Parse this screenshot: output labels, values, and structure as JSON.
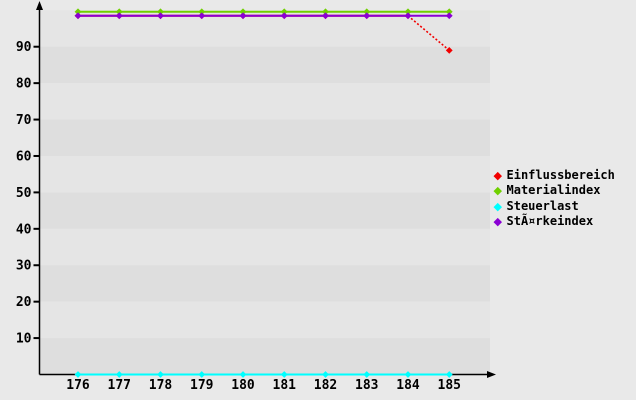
{
  "page": {
    "background_color": "#e9e9e9",
    "plot_band_light": "#e5e5e5",
    "plot_band_dark": "#dedede",
    "axis_color": "#000000",
    "text_color": "#000000"
  },
  "chart_data": {
    "type": "line",
    "title": "",
    "xlabel": "",
    "ylabel": "",
    "x": [
      176,
      177,
      178,
      179,
      180,
      181,
      182,
      183,
      184,
      185
    ],
    "xticklabels": [
      "176",
      "177",
      "178",
      "179",
      "180",
      "181",
      "182",
      "183",
      "184",
      "185"
    ],
    "yticks": [
      10,
      20,
      30,
      40,
      50,
      60,
      70,
      80,
      90
    ],
    "yticklabels": [
      "10",
      "20",
      "30",
      "40",
      "50",
      "60",
      "70",
      "80",
      "90"
    ],
    "ylim": [
      0,
      100
    ],
    "grid": "horizontal-bands",
    "legend_position": "right",
    "marker": "diamond",
    "series": [
      {
        "name": "Einflussbereich",
        "color": "#f20000",
        "values": [
          98.5,
          98.5,
          98.5,
          98.5,
          98.5,
          98.5,
          98.5,
          98.5,
          98.5,
          89
        ],
        "last_segment_dotted": true
      },
      {
        "name": "Materialindex",
        "color": "#70d000",
        "values": [
          99.6,
          99.6,
          99.6,
          99.6,
          99.6,
          99.6,
          99.6,
          99.6,
          99.6,
          99.6
        ],
        "last_segment_dotted": false
      },
      {
        "name": "Steuerlast",
        "color": "#00ffff",
        "values": [
          0,
          0,
          0,
          0,
          0,
          0,
          0,
          0,
          0,
          0
        ],
        "last_segment_dotted": false
      },
      {
        "name": "StÃ¤rkeindex",
        "color": "#8a00d4",
        "values": [
          98.5,
          98.5,
          98.5,
          98.5,
          98.5,
          98.5,
          98.5,
          98.5,
          98.5,
          98.5
        ],
        "last_segment_dotted": false
      }
    ]
  }
}
